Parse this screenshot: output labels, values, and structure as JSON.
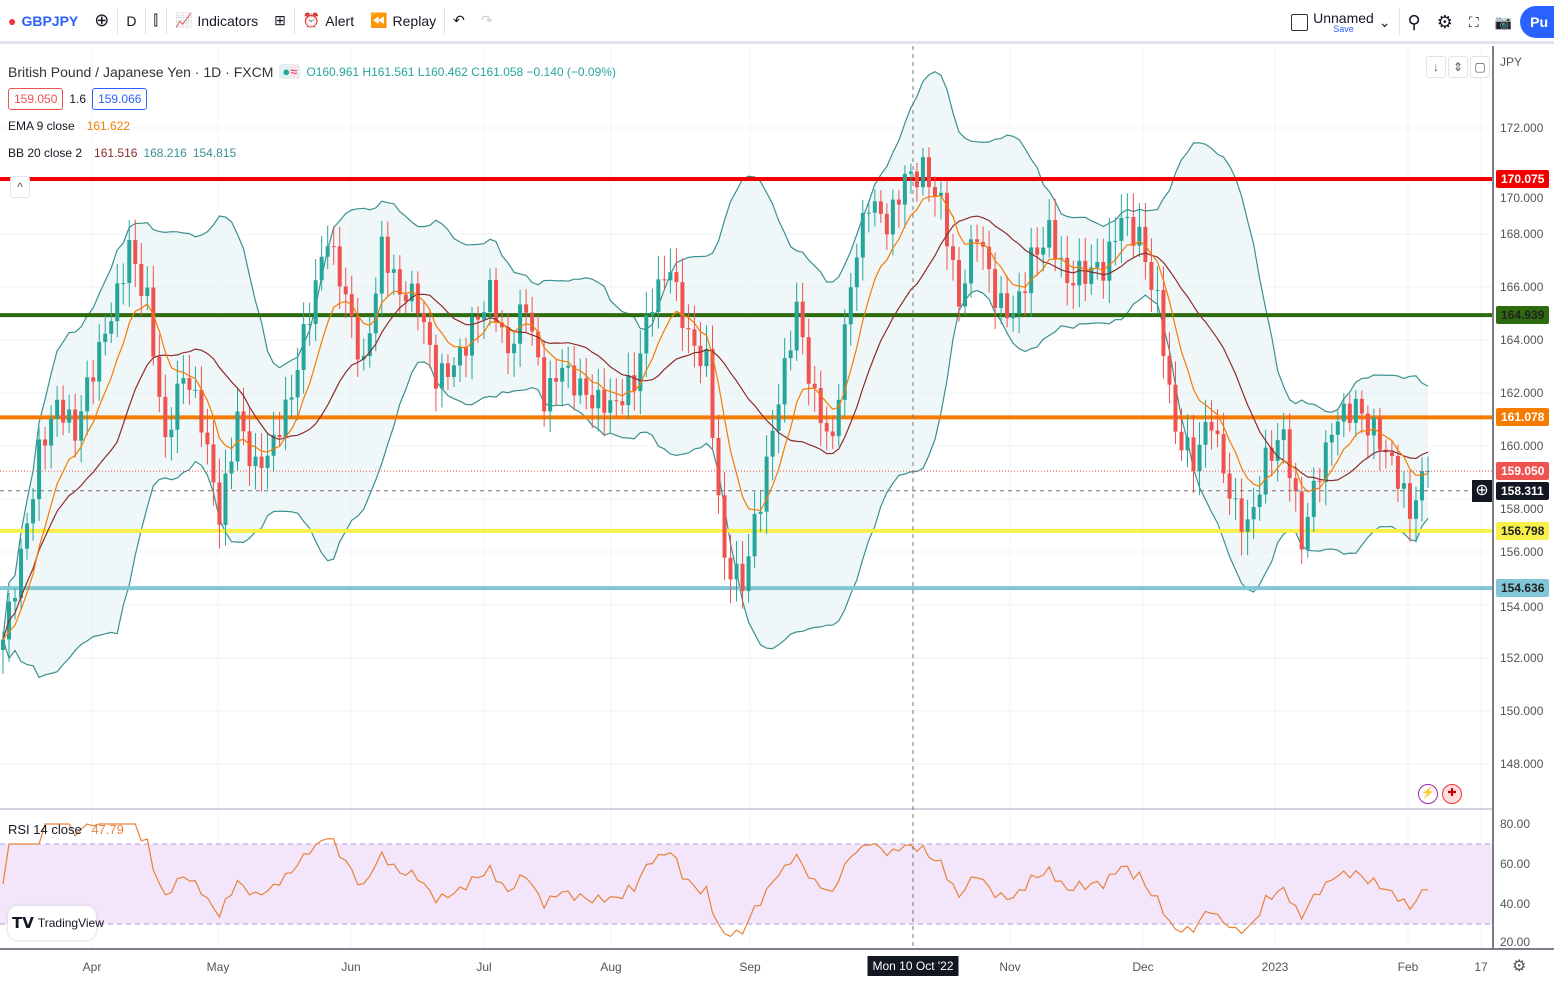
{
  "toolbar": {
    "symbol": "GBPJPY",
    "interval": "D",
    "indicators": "Indicators",
    "alert": "Alert",
    "replay": "Replay",
    "layout_name": "Unnamed",
    "save": "Save",
    "publish": "Pu"
  },
  "legend": {
    "title": "British Pound / Japanese Yen · 1D · FXCM",
    "ohlc": "O160.961 H161.561 L160.462 C161.058 −0.140 (−0.09%)",
    "sell": "159.050",
    "spread": "1.6",
    "buy": "159.066",
    "ema_label": "EMA 9 close",
    "ema_value": "161.622",
    "bb_label": "BB 20 close 2",
    "bb_mid": "161.516",
    "bb_up": "168.216",
    "bb_low": "154.815"
  },
  "price_axis": {
    "currency": "JPY",
    "labels": [
      "172.000",
      "170.000",
      "168.000",
      "166.000",
      "164.000",
      "162.000",
      "160.000",
      "158.000",
      "156.000",
      "154.000",
      "152.000",
      "150.000",
      "148.000"
    ]
  },
  "levels": [
    {
      "price": 170.075,
      "label": "170.075",
      "color": "#f20000"
    },
    {
      "price": 164.939,
      "label": "164.939",
      "color": "#2e6b0f"
    },
    {
      "price": 161.078,
      "label": "161.078",
      "color": "#f57c00"
    },
    {
      "price": 156.798,
      "label": "156.798",
      "color": "#f7ef4a"
    },
    {
      "price": 154.636,
      "label": "154.636",
      "color": "#80c6d6"
    }
  ],
  "current_price": {
    "label": "159.050",
    "value": 159.05
  },
  "crosshair": {
    "label": "158.311",
    "value": 158.311,
    "date": "Mon 10 Oct '22"
  },
  "rsi": {
    "label": "RSI 14 close",
    "value": "47.79",
    "axis": [
      "80.00",
      "60.00",
      "40.00",
      "20.00"
    ]
  },
  "time_axis": [
    "Apr",
    "May",
    "Jun",
    "Jul",
    "Aug",
    "Sep",
    "Nov",
    "Dec",
    "2023",
    "Feb",
    "17"
  ],
  "brand": "TradingView",
  "colors": {
    "up": "#26a69a",
    "down": "#ef5350",
    "ema": "#f57c00",
    "bb": "#3d8f8f",
    "rsi": "#e8823c"
  },
  "chart_data": {
    "type": "candlestick",
    "symbol": "GBPJPY",
    "ylim": [
      146.5,
      174
    ],
    "closes": [
      152.7,
      155.7,
      159.8,
      161.7,
      160.6,
      162.9,
      164.8,
      167.4,
      165.5,
      160.2,
      162.9,
      161,
      157.2,
      161,
      159.1,
      160.2,
      162.1,
      165.1,
      167.8,
      165.5,
      162.9,
      167.6,
      165.9,
      165.5,
      162.5,
      162.9,
      164.4,
      165.9,
      163.6,
      165.5,
      161.7,
      162.9,
      162.1,
      161.7,
      161.7,
      162.5,
      165.5,
      166.6,
      164,
      163.2,
      155.7,
      154.9,
      158,
      161.7,
      165.1,
      161.7,
      160.2,
      166.3,
      169.3,
      168.2,
      170,
      170.4,
      169.3,
      165.5,
      168.2,
      165.5,
      164.8,
      167,
      168.2,
      166.3,
      166.6,
      166.6,
      168.5,
      167.8,
      165.5,
      160.6,
      159.5,
      161,
      158,
      156.8,
      159.5,
      160.6,
      156.5,
      159.1,
      161,
      161.4,
      160.6,
      159.5,
      157.6,
      159.05
    ]
  }
}
